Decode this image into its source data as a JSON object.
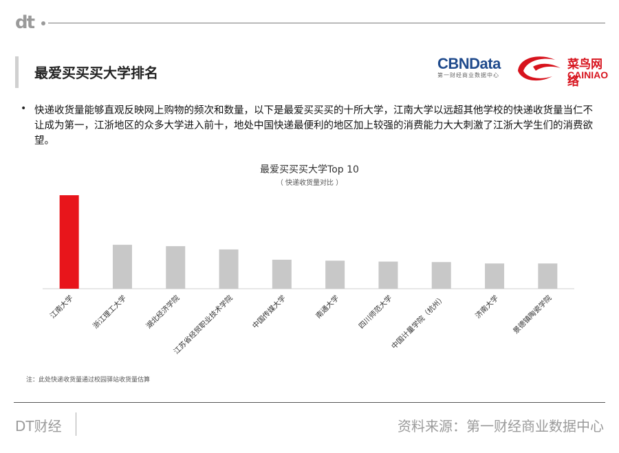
{
  "header": {
    "logo": "dt",
    "title": "最爱买买买大学排名",
    "brand_cbn_main": "CBNData",
    "brand_cbn_sub": "第一财经商业数据中心",
    "brand_cainiao_cn": "菜鸟网络",
    "brand_cainiao_en": "CAINIAO"
  },
  "body": {
    "bullet": "•",
    "description": "快递收货量能够直观反映网上购物的频次和数量，以下是最爱买买买的十所大学，江南大学以远超其他学校的快递收货量当仁不让成为第一，江浙地区的众多大学进入前十，地处中国快递最便利的地区加上较强的消费能力大大刺激了江浙大学生们的消费欲望。"
  },
  "chart_data": {
    "type": "bar",
    "title": "最爱买买买大学Top 10",
    "subtitle": "（ 快递收货量对比 ）",
    "categories": [
      "江南大学",
      "浙江理工大学",
      "湖北经济学院",
      "江苏省经贸职业技术学院",
      "中国传媒大学",
      "南通大学",
      "四川师范大学",
      "中国计量学院（杭州）",
      "济南大学",
      "景德镇陶瓷学院"
    ],
    "values": [
      100,
      47,
      45.5,
      42,
      31,
      30,
      29,
      28.5,
      27,
      27
    ],
    "colors": [
      "#e8151b",
      "#c8c8c8",
      "#c8c8c8",
      "#c8c8c8",
      "#c8c8c8",
      "#c8c8c8",
      "#c8c8c8",
      "#c8c8c8",
      "#c8c8c8",
      "#c8c8c8"
    ],
    "ylim": [
      0,
      100
    ],
    "grid": false
  },
  "note": "注：此处快递收货量通过校园驿站收货量估算",
  "footer": {
    "left": "DT财经",
    "right": "资料来源：第一财经商业数据中心"
  }
}
